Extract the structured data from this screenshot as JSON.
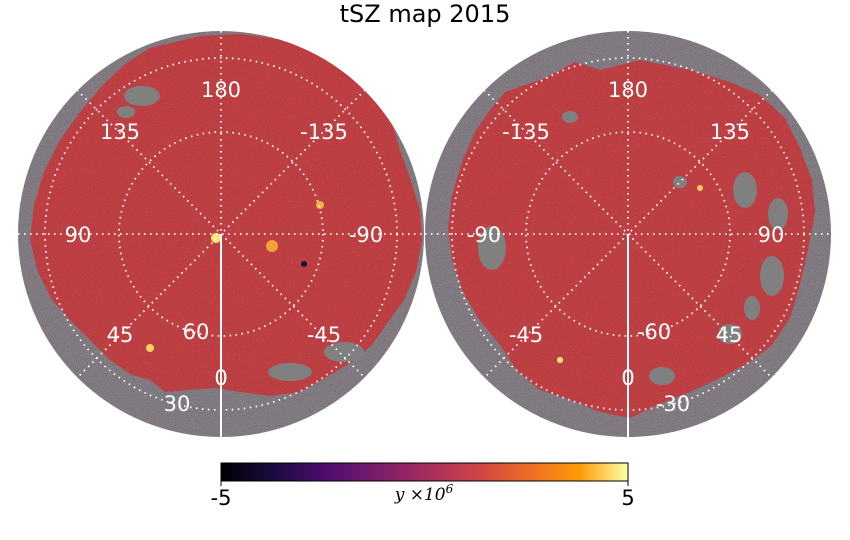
{
  "chart_data": {
    "type": "heatmap",
    "projection": "orthographic",
    "title": "tSZ map 2015",
    "hemispheres": [
      {
        "name": "left",
        "meridian_labels": [
          "180",
          "135",
          "-135",
          "90",
          "-90",
          "45",
          "-45",
          "0"
        ],
        "parallel_labels": [
          "60",
          "30"
        ]
      },
      {
        "name": "right",
        "meridian_labels": [
          "180",
          "-135",
          "135",
          "-90",
          "90",
          "-45",
          "45",
          "0"
        ],
        "parallel_labels": [
          "-60",
          "-30"
        ]
      }
    ],
    "colorbar": {
      "colormap": "inferno",
      "min_label": "-5",
      "max_label": "5",
      "label_base": "y ×10",
      "label_exp": "6",
      "min": -5,
      "max": 5
    },
    "colors": {
      "masked": "#808080",
      "map_base": "#c2403d",
      "grid": "#ffffff"
    }
  }
}
